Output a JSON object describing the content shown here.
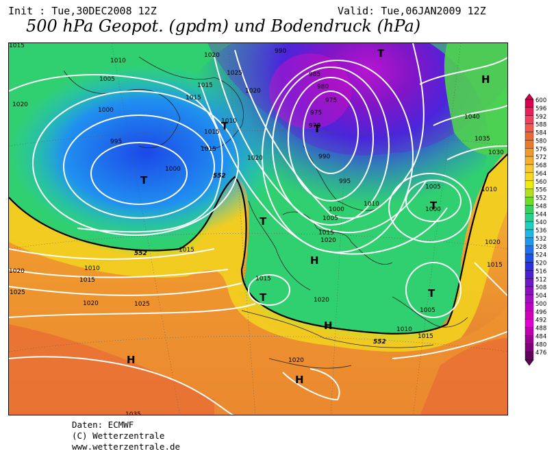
{
  "header": {
    "init": "Init : Tue,30DEC2008 12Z",
    "valid": "Valid: Tue,06JAN2009 12Z",
    "title": "500 hPa Geopot. (gpdm) und Bodendruck (hPa)"
  },
  "credits": [
    "Daten: ECMWF",
    "(C) Wetterzentrale",
    "www.wetterzentrale.de"
  ],
  "scale": {
    "values": [
      600,
      596,
      592,
      588,
      584,
      580,
      576,
      572,
      568,
      564,
      560,
      556,
      552,
      548,
      544,
      540,
      536,
      532,
      528,
      524,
      520,
      516,
      512,
      508,
      504,
      500,
      496,
      492,
      488,
      484,
      480,
      476
    ],
    "colors": [
      "#d9004f",
      "#e8205a",
      "#f04060",
      "#f05a50",
      "#e86a35",
      "#e87a30",
      "#ee9a30",
      "#f5b030",
      "#f8c834",
      "#f5d820",
      "#ecec10",
      "#b0e020",
      "#70dc2a",
      "#3ad060",
      "#28d090",
      "#20d0c0",
      "#20b8e0",
      "#2098f0",
      "#2070f0",
      "#1c50e8",
      "#2a30e0",
      "#4a20d0",
      "#6a18c8",
      "#8a10c0",
      "#a010c0",
      "#c000c0",
      "#d000b8",
      "#e000d0",
      "#c000b0",
      "#9a0090",
      "#80007a",
      "#60005a"
    ]
  },
  "map": {
    "pressure_labels": [
      "1015",
      "1020",
      "1010",
      "1005",
      "1000",
      "995",
      "1010",
      "1015",
      "1015",
      "1020",
      "1025",
      "1020",
      "1025",
      "1015",
      "1010",
      "1020",
      "1015",
      "1020",
      "1015",
      "1015",
      "990",
      "985",
      "980",
      "975",
      "970",
      "975",
      "990",
      "995",
      "1000",
      "1005",
      "1010",
      "1015",
      "1020",
      "1005",
      "1000",
      "1005",
      "1010",
      "1015",
      "1020",
      "1010",
      "1040",
      "1035",
      "1030",
      "1010",
      "1020",
      "1015",
      "1005",
      "1025",
      "1025",
      "1035",
      "1020",
      "1000",
      "1015",
      "1015",
      "1010",
      "1020",
      "990"
    ],
    "highs_lows": [
      "T",
      "T",
      "T",
      "T",
      "T",
      "T",
      "T",
      "T",
      "H",
      "H",
      "H",
      "H",
      "H",
      "H",
      "H"
    ],
    "geopot_line_labels": [
      "552",
      "552",
      "552"
    ]
  }
}
